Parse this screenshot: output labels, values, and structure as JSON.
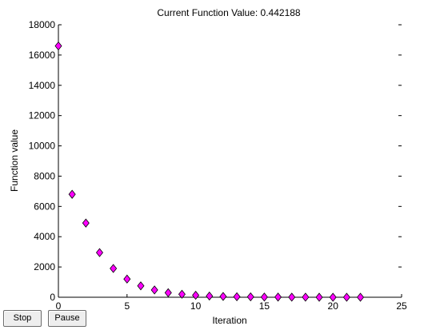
{
  "figure": {
    "title": "Current Function Value: 0.442188"
  },
  "controls": {
    "stop_label": "Stop",
    "pause_label": "Pause"
  },
  "colors": {
    "marker_fill": "#ff00ff",
    "marker_edge": "#000000",
    "axis": "#000000",
    "background": "#ffffff"
  },
  "chart_data": {
    "type": "scatter",
    "title": "Current Function Value: 0.442188",
    "xlabel": "Iteration",
    "ylabel": "Function value",
    "xlim": [
      0,
      25
    ],
    "ylim": [
      0,
      18000
    ],
    "xticks": [
      0,
      5,
      10,
      15,
      20,
      25
    ],
    "yticks": [
      0,
      2000,
      4000,
      6000,
      8000,
      10000,
      12000,
      14000,
      16000,
      18000
    ],
    "grid": false,
    "marker": "diamond",
    "series": [
      {
        "x": [
          0,
          1,
          2,
          3,
          4,
          5,
          6,
          7,
          8,
          9,
          10,
          11,
          12,
          13,
          14,
          15,
          16,
          17,
          18,
          19,
          20,
          21,
          22
        ],
        "y": [
          16600,
          6800,
          4900,
          2950,
          1900,
          1200,
          750,
          480,
          300,
          200,
          130,
          80,
          55,
          35,
          25,
          15,
          10,
          7,
          5,
          3,
          2,
          1,
          0.44
        ]
      }
    ]
  }
}
